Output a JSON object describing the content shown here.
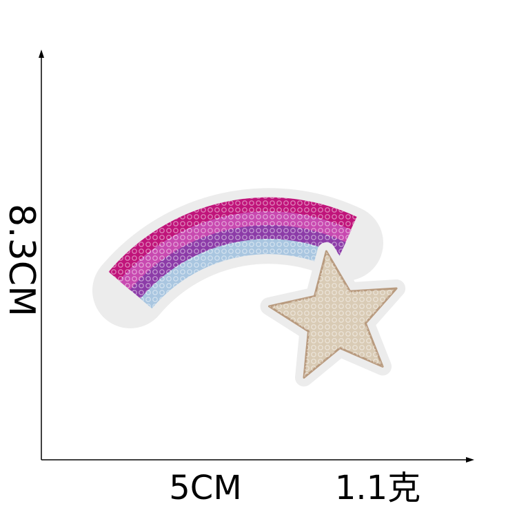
{
  "dimensions": {
    "height": "8.3CM",
    "width": "5CM",
    "weight": "1.1克"
  }
}
